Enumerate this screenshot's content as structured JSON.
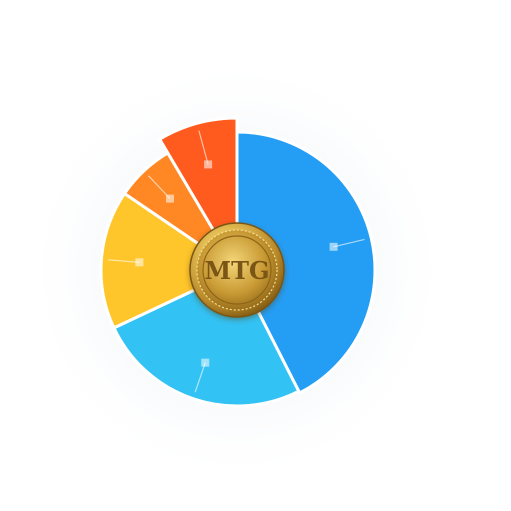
{
  "chart_data": {
    "type": "pie",
    "title": "",
    "slices": [
      {
        "value": 42.5,
        "color": "#1296F4"
      },
      {
        "value": 25.5,
        "color": "#22BDF4"
      },
      {
        "value": 16.5,
        "color": "#FFC21A"
      },
      {
        "value": 7.0,
        "color": "#FF7E12"
      },
      {
        "value": 8.5,
        "color": "#FF4E0C"
      }
    ],
    "start_angle_deg": 0,
    "direction": "clockwise",
    "center_badge": {
      "text": "MTG",
      "color": "#C9A23A",
      "icon": "gold-coin-icon"
    }
  }
}
